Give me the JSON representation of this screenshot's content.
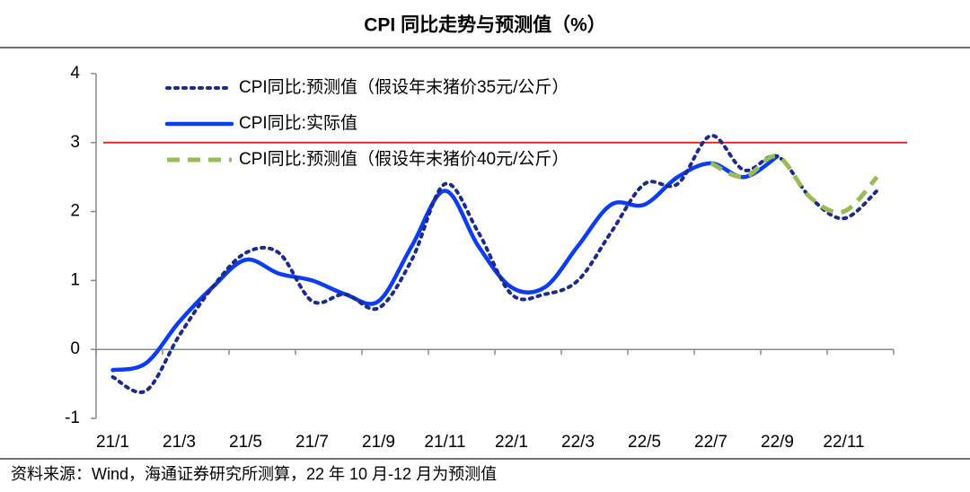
{
  "chart_data": {
    "type": "line",
    "title": "CPI 同比走势与预测值（%）",
    "source": "资料来源：Wind，海通证券研究所测算，22 年 10 月-12 月为预测值",
    "categories": [
      "21/1",
      null,
      "21/3",
      null,
      "21/5",
      null,
      "21/7",
      null,
      "21/9",
      null,
      "21/11",
      null,
      "22/1",
      null,
      "22/3",
      null,
      "22/5",
      null,
      "22/7",
      null,
      "22/9",
      null,
      "22/11",
      null
    ],
    "series": [
      {
        "name": "CPI同比:预测值（假设年末猪价35元/公斤）",
        "color": "#1c2a8a",
        "dash": "dotted",
        "values": [
          -0.4,
          -0.6,
          0.2,
          0.9,
          1.4,
          1.4,
          0.7,
          0.8,
          0.6,
          1.3,
          2.4,
          1.7,
          0.8,
          0.8,
          1.0,
          1.7,
          2.4,
          2.4,
          3.1,
          2.6,
          2.8,
          2.2,
          1.9,
          2.3
        ]
      },
      {
        "name": "CPI同比:实际值",
        "color": "#0b3df2",
        "dash": "solid",
        "values": [
          -0.3,
          -0.2,
          0.4,
          0.9,
          1.3,
          1.1,
          1.0,
          0.8,
          0.7,
          1.5,
          2.3,
          1.5,
          0.9,
          0.9,
          1.5,
          2.1,
          2.1,
          2.5,
          2.7,
          2.5,
          2.8,
          null,
          null,
          null
        ]
      },
      {
        "name": "CPI同比:预测值（假设年末猪价40元/公斤）",
        "color": "#9bbb59",
        "dash": "dashed",
        "values": [
          null,
          null,
          null,
          null,
          null,
          null,
          null,
          null,
          null,
          null,
          null,
          null,
          null,
          null,
          null,
          null,
          null,
          null,
          2.7,
          2.5,
          2.8,
          2.2,
          2.0,
          2.5
        ]
      }
    ],
    "reference_line": {
      "value": 3,
      "color": "#e02020"
    },
    "ylim": [
      -1,
      4
    ],
    "yticks": [
      -1,
      0,
      1,
      2,
      3,
      4
    ],
    "legend": "top-left"
  }
}
